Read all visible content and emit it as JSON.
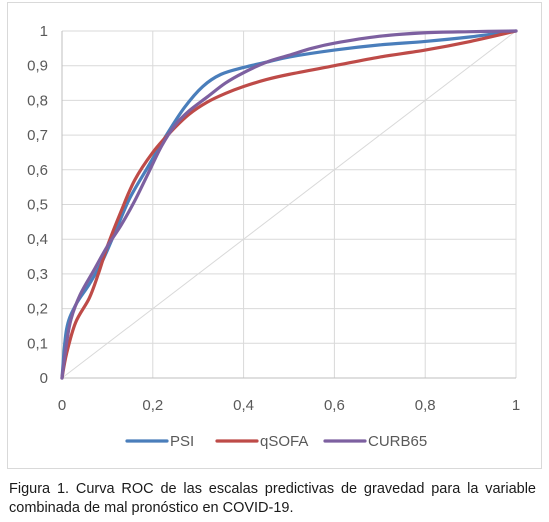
{
  "caption": "Figura 1. Curva ROC de las escalas predictivas de gravedad para la variable combinada de mal pronóstico en COVID-19.",
  "colors": {
    "gridline": "#d9d9d9",
    "axis": "#bfbfbf",
    "reference_line": "#d9d9d9",
    "tick_text": "#595959"
  },
  "chart_data": {
    "type": "line",
    "title": "",
    "xlabel": "",
    "ylabel": "",
    "xlim": [
      0,
      1
    ],
    "ylim": [
      0,
      1
    ],
    "x_ticks": [
      "0",
      "0,2",
      "0,4",
      "0,6",
      "0,8",
      "1"
    ],
    "x_tick_values": [
      0,
      0.2,
      0.4,
      0.6,
      0.8,
      1
    ],
    "y_ticks": [
      "0",
      "0,1",
      "0,2",
      "0,3",
      "0,4",
      "0,5",
      "0,6",
      "0,7",
      "0,8",
      "0,9",
      "1"
    ],
    "y_tick_values": [
      0,
      0.1,
      0.2,
      0.3,
      0.4,
      0.5,
      0.6,
      0.7,
      0.8,
      0.9,
      1
    ],
    "grid": true,
    "legend_position": "bottom",
    "reference_line": {
      "x": [
        0,
        1
      ],
      "y": [
        0,
        1
      ]
    },
    "series": [
      {
        "name": "PSI",
        "color": "#4a7ebb",
        "x": [
          0,
          0.01,
          0.03,
          0.06,
          0.09,
          0.12,
          0.15,
          0.19,
          0.23,
          0.27,
          0.31,
          0.35,
          0.4,
          0.45,
          0.5,
          0.6,
          0.7,
          0.8,
          0.9,
          1.0
        ],
        "y": [
          0,
          0.14,
          0.21,
          0.27,
          0.34,
          0.43,
          0.52,
          0.61,
          0.7,
          0.78,
          0.84,
          0.875,
          0.895,
          0.91,
          0.925,
          0.945,
          0.96,
          0.97,
          0.983,
          1.0
        ]
      },
      {
        "name": "qSOFA",
        "color": "#be4b48",
        "x": [
          0,
          0.01,
          0.03,
          0.06,
          0.08,
          0.1,
          0.13,
          0.16,
          0.2,
          0.24,
          0.28,
          0.32,
          0.36,
          0.4,
          0.45,
          0.5,
          0.6,
          0.7,
          0.8,
          0.9,
          1.0
        ],
        "y": [
          0,
          0.07,
          0.16,
          0.23,
          0.3,
          0.38,
          0.48,
          0.57,
          0.65,
          0.71,
          0.76,
          0.795,
          0.82,
          0.84,
          0.86,
          0.875,
          0.9,
          0.925,
          0.945,
          0.97,
          1.0
        ]
      },
      {
        "name": "CURB65",
        "color": "#7d60a0",
        "x": [
          0,
          0.01,
          0.02,
          0.04,
          0.07,
          0.1,
          0.13,
          0.16,
          0.19,
          0.22,
          0.25,
          0.28,
          0.32,
          0.36,
          0.4,
          0.45,
          0.5,
          0.55,
          0.6,
          0.7,
          0.8,
          0.9,
          1.0
        ],
        "y": [
          0,
          0.1,
          0.17,
          0.24,
          0.31,
          0.38,
          0.44,
          0.51,
          0.59,
          0.67,
          0.73,
          0.77,
          0.81,
          0.85,
          0.88,
          0.91,
          0.93,
          0.95,
          0.965,
          0.985,
          0.995,
          0.998,
          1.0
        ]
      }
    ]
  }
}
